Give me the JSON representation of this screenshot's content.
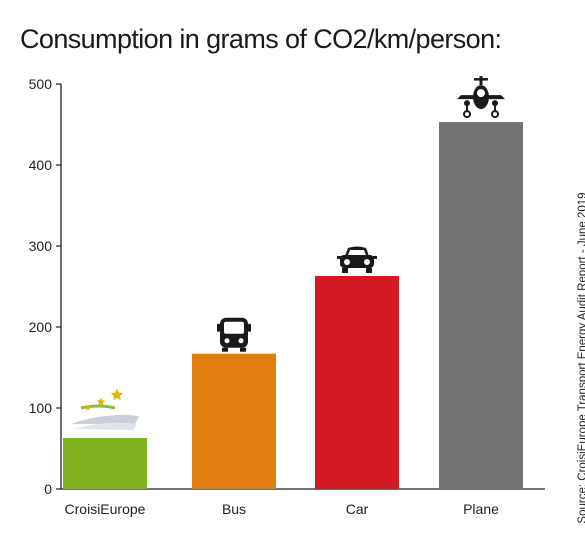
{
  "chart_data": {
    "type": "bar",
    "title": "Consumption in grams of CO2/km/person:",
    "xlabel": "",
    "ylabel": "",
    "ylim": [
      0,
      500
    ],
    "yticks": [
      0,
      100,
      200,
      300,
      400,
      500
    ],
    "grid": false,
    "categories": [
      "CroisiEurope",
      "Bus",
      "Car",
      "Plane"
    ],
    "values": [
      63,
      167,
      263,
      453
    ],
    "colors": [
      "#80b41e",
      "#e07e10",
      "#d31a22",
      "#737373"
    ],
    "icons": [
      "cruise-ship-icon",
      "bus-icon",
      "car-icon",
      "plane-icon"
    ],
    "source": "Source: CroisiEurope Transport Energy Audit Report - June 2019"
  }
}
